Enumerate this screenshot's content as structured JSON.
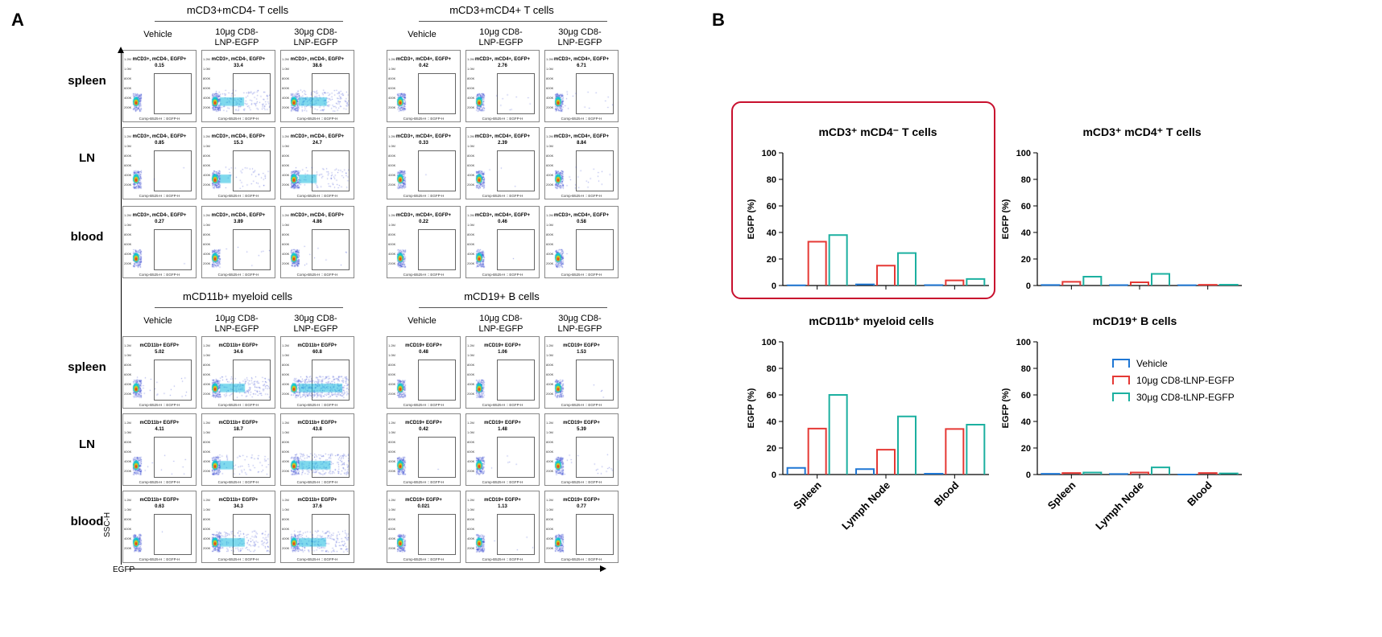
{
  "panel_a": {
    "letter": "A",
    "groups": [
      {
        "title": "mCD3+mCD4- T cells",
        "gate_label": "mCD3+, mCD4-, EGFP+",
        "values": [
          [
            "0.15",
            "33.4",
            "38.6"
          ],
          [
            "0.85",
            "15.3",
            "24.7"
          ],
          [
            "0.27",
            "3.89",
            "4.86"
          ]
        ]
      },
      {
        "title": "mCD3+mCD4+ T cells",
        "gate_label": "mCD3+, mCD4+, EGFP+",
        "values": [
          [
            "0.42",
            "2.76",
            "6.71"
          ],
          [
            "0.33",
            "2.39",
            "8.84"
          ],
          [
            "0.22",
            "0.46",
            "0.58"
          ]
        ]
      },
      {
        "title": "mCD11b+ myeloid cells",
        "gate_label": "mCD11b+ EGFP+",
        "values": [
          [
            "5.02",
            "34.6",
            "60.8"
          ],
          [
            "4.11",
            "18.7",
            "43.8"
          ],
          [
            "0.63",
            "34.3",
            "37.6"
          ]
        ]
      },
      {
        "title": "mCD19+ B cells",
        "gate_label": "mCD19+ EGFP+",
        "values": [
          [
            "0.48",
            "1.06",
            "1.53"
          ],
          [
            "0.42",
            "1.48",
            "5.39"
          ],
          [
            "0.021",
            "1.13",
            "0.77"
          ]
        ]
      }
    ],
    "conditions": [
      "Vehicle",
      "10μg CD8-\nLNP-EGFP",
      "30μg CD8-\nLNP-EGFP"
    ],
    "tissues": [
      "spleen",
      "LN",
      "blood"
    ],
    "y_axis_label": "SSC-H",
    "x_axis_label": "EGFP",
    "plot_x_label": "Comp-B525-H :: EGFP-H"
  },
  "panel_b": {
    "letter": "B"
  },
  "colors": {
    "vehicle": "#1f77d4",
    "dose10": "#e53935",
    "dose30": "#1cb0a0",
    "highlight": "#c8102e"
  },
  "chart_data": [
    {
      "type": "bar",
      "title": "mCD3⁺ mCD4⁻ T cells",
      "ylabel": "EGFP (%)",
      "ylim": [
        0,
        100
      ],
      "yticks": [
        0,
        20,
        40,
        60,
        80,
        100
      ],
      "categories": [
        "Spleen",
        "Lymph Node",
        "Blood"
      ],
      "show_xticklabels": false,
      "highlighted": true,
      "series": [
        {
          "name": "Vehicle",
          "values": [
            0.15,
            0.85,
            0.27
          ]
        },
        {
          "name": "10μg CD8-tLNP-EGFP",
          "values": [
            33,
            15,
            3.9
          ]
        },
        {
          "name": "30μg CD8-tLNP-EGFP",
          "values": [
            38,
            24.5,
            4.9
          ]
        }
      ]
    },
    {
      "type": "bar",
      "title": "mCD3⁺ mCD4⁺ T cells",
      "ylabel": "EGFP (%)",
      "ylim": [
        0,
        100
      ],
      "yticks": [
        0,
        20,
        40,
        60,
        80,
        100
      ],
      "categories": [
        "Spleen",
        "Lymph Node",
        "Blood"
      ],
      "show_xticklabels": false,
      "series": [
        {
          "name": "Vehicle",
          "values": [
            0.4,
            0.3,
            0.2
          ]
        },
        {
          "name": "10μg CD8-tLNP-EGFP",
          "values": [
            2.8,
            2.4,
            0.5
          ]
        },
        {
          "name": "30μg CD8-tLNP-EGFP",
          "values": [
            6.7,
            8.8,
            0.6
          ]
        }
      ]
    },
    {
      "type": "bar",
      "title": "mCD11b⁺ myeloid cells",
      "ylabel": "EGFP (%)",
      "ylim": [
        0,
        100
      ],
      "yticks": [
        0,
        20,
        40,
        60,
        80,
        100
      ],
      "categories": [
        "Spleen",
        "Lymph Node",
        "Blood"
      ],
      "show_xticklabels": true,
      "series": [
        {
          "name": "Vehicle",
          "values": [
            5.0,
            4.1,
            0.6
          ]
        },
        {
          "name": "10μg CD8-tLNP-EGFP",
          "values": [
            34.6,
            18.7,
            34.3
          ]
        },
        {
          "name": "30μg CD8-tLNP-EGFP",
          "values": [
            60,
            43.8,
            37.6
          ]
        }
      ]
    },
    {
      "type": "bar",
      "title": "mCD19⁺ B cells",
      "ylabel": "EGFP (%)",
      "ylim": [
        0,
        100
      ],
      "yticks": [
        0,
        20,
        40,
        60,
        80,
        100
      ],
      "categories": [
        "Spleen",
        "Lymph Node",
        "Blood"
      ],
      "show_xticklabels": true,
      "legend": "right",
      "series": [
        {
          "name": "Vehicle",
          "values": [
            0.5,
            0.4,
            0.02
          ]
        },
        {
          "name": "10μg CD8-tLNP-EGFP",
          "values": [
            1.1,
            1.5,
            1.1
          ]
        },
        {
          "name": "30μg CD8-tLNP-EGFP",
          "values": [
            1.5,
            5.4,
            0.8
          ]
        }
      ]
    }
  ]
}
